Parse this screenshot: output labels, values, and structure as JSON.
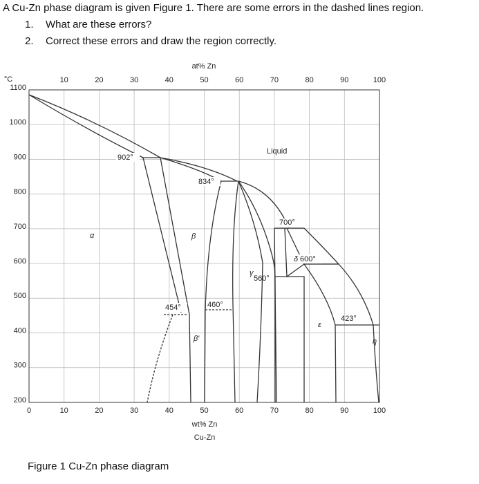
{
  "question": {
    "intro": "A Cu-Zn phase diagram is given Figure 1. There are some errors in the dashed lines region.",
    "items": [
      {
        "number": "1.",
        "text": "What are these errors?"
      },
      {
        "number": "2.",
        "text": "Correct these errors and draw the region correctly."
      }
    ]
  },
  "figure": {
    "top_axis_label": "at% Zn",
    "top_ticks": [
      10,
      20,
      30,
      40,
      50,
      60,
      70,
      80,
      90,
      100
    ],
    "y_unit": "°C",
    "y_ticks": [
      1100,
      1000,
      900,
      800,
      700,
      600,
      500,
      400,
      300,
      200
    ],
    "bottom_ticks": [
      0,
      10,
      20,
      30,
      40,
      50,
      60,
      70,
      80,
      90,
      100
    ],
    "bottom_axis_label": "wt% Zn",
    "system": "Cu-Zn",
    "labels": {
      "t902": "902°",
      "t834": "834°",
      "liquid": "Liquid",
      "t700": "700°",
      "t600": "600°",
      "t560": "560°",
      "t454": "454°",
      "t460": "460°",
      "t423": "423°",
      "alpha": "α",
      "beta": "β",
      "beta_prime": "β′",
      "gamma": "γ",
      "delta": "δ",
      "epsilon": "ε",
      "eta": "η"
    },
    "caption": "Figure 1 Cu-Zn phase diagram"
  }
}
